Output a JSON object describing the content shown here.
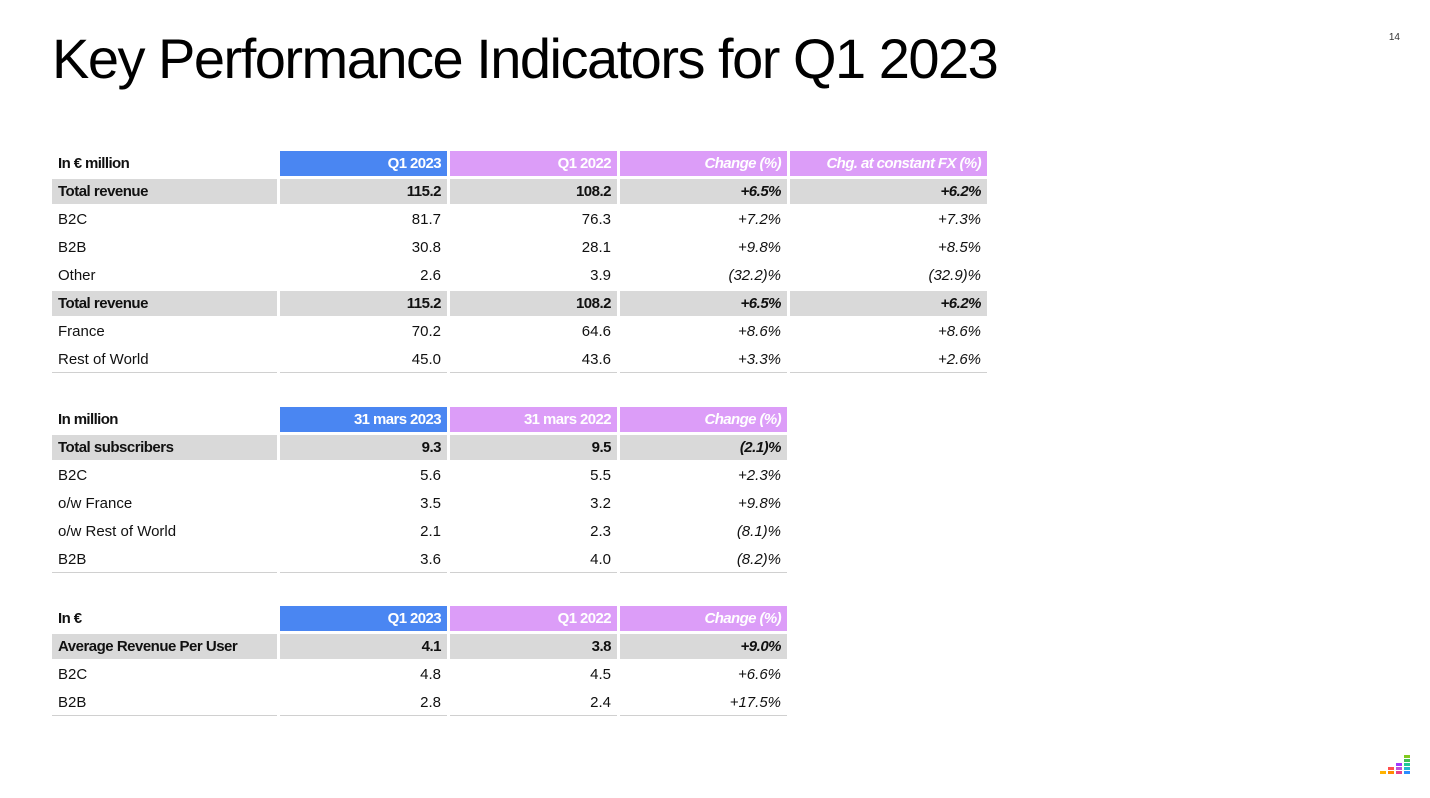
{
  "page": {
    "number": "14",
    "title": "Key Performance Indicators for Q1 2023"
  },
  "revenue_table": {
    "header": [
      "In € million",
      "Q1 2023",
      "Q1 2022",
      "Change  (%)",
      "Chg. at constant FX (%)"
    ],
    "rows": [
      {
        "label": "Total revenue",
        "q1_2023": "115.2",
        "q1_2022": "108.2",
        "change": "+6.5%",
        "change_fx": "+6.2%",
        "total": true
      },
      {
        "label": "B2C",
        "q1_2023": "81.7",
        "q1_2022": "76.3",
        "change": "+7.2%",
        "change_fx": "+7.3%",
        "total": false
      },
      {
        "label": "B2B",
        "q1_2023": "30.8",
        "q1_2022": "28.1",
        "change": "+9.8%",
        "change_fx": "+8.5%",
        "total": false
      },
      {
        "label": "Other",
        "q1_2023": "2.6",
        "q1_2022": "3.9",
        "change": "(32.2)%",
        "change_fx": "(32.9)%",
        "total": false
      },
      {
        "label": "Total revenue",
        "q1_2023": "115.2",
        "q1_2022": "108.2",
        "change": "+6.5%",
        "change_fx": "+6.2%",
        "total": true
      },
      {
        "label": "France",
        "q1_2023": "70.2",
        "q1_2022": "64.6",
        "change": "+8.6%",
        "change_fx": "+8.6%",
        "total": false
      },
      {
        "label": "Rest of World",
        "q1_2023": "45.0",
        "q1_2022": "43.6",
        "change": "+3.3%",
        "change_fx": "+2.6%",
        "total": false
      }
    ]
  },
  "subscribers_table": {
    "header": [
      "In million",
      "31 mars 2023",
      "31 mars 2022",
      "Change (%)"
    ],
    "rows": [
      {
        "label": "Total subscribers",
        "current": "9.3",
        "prior": "9.5",
        "change": "(2.1)%",
        "total": true
      },
      {
        "label": "B2C",
        "current": "5.6",
        "prior": "5.5",
        "change": "+2.3%",
        "total": false
      },
      {
        "label": "o/w France",
        "current": "3.5",
        "prior": "3.2",
        "change": "+9.8%",
        "total": false
      },
      {
        "label": "o/w Rest of World",
        "current": "2.1",
        "prior": "2.3",
        "change": "(8.1)%",
        "total": false
      },
      {
        "label": "B2B",
        "current": "3.6",
        "prior": "4.0",
        "change": "(8.2)%",
        "total": false
      }
    ]
  },
  "arpu_table": {
    "header": [
      "In €",
      "Q1 2023",
      "Q1 2022",
      "Change (%)"
    ],
    "rows": [
      {
        "label": "Average Revenue Per User",
        "current": "4.1",
        "prior": "3.8",
        "change": "+9.0%",
        "total": true
      },
      {
        "label": "B2C",
        "current": "4.8",
        "prior": "4.5",
        "change": "+6.6%",
        "total": false
      },
      {
        "label": "B2B",
        "current": "2.8",
        "prior": "2.4",
        "change": "+17.5%",
        "total": false
      }
    ]
  },
  "colors": {
    "current_period": "#4a86f2",
    "prior_period": "#dc9df8",
    "total_row": "#d9d9d9"
  },
  "logo": {
    "icon": "equalizer-bars-logo-icon"
  }
}
